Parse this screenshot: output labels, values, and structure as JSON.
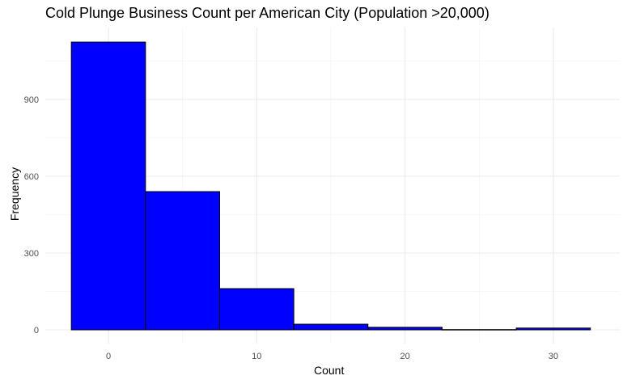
{
  "chart_data": {
    "type": "bar",
    "title": "Cold Plunge Business Count per American City (Population >20,000)",
    "xlabel": "Count",
    "ylabel": "Frequency",
    "categories": [
      "0",
      "5",
      "10",
      "15",
      "20",
      "25",
      "30"
    ],
    "bin_width": 5,
    "values": [
      1124,
      540,
      161,
      22,
      10,
      1,
      7
    ],
    "x_ticks": [
      0,
      10,
      20,
      30
    ],
    "y_ticks": [
      0,
      300,
      600,
      900
    ],
    "xlim": [
      -5.3,
      34.5
    ],
    "ylim": [
      0,
      1180
    ],
    "grid": true,
    "bar_fill": "#0000FF",
    "bar_outline": "#000000"
  }
}
